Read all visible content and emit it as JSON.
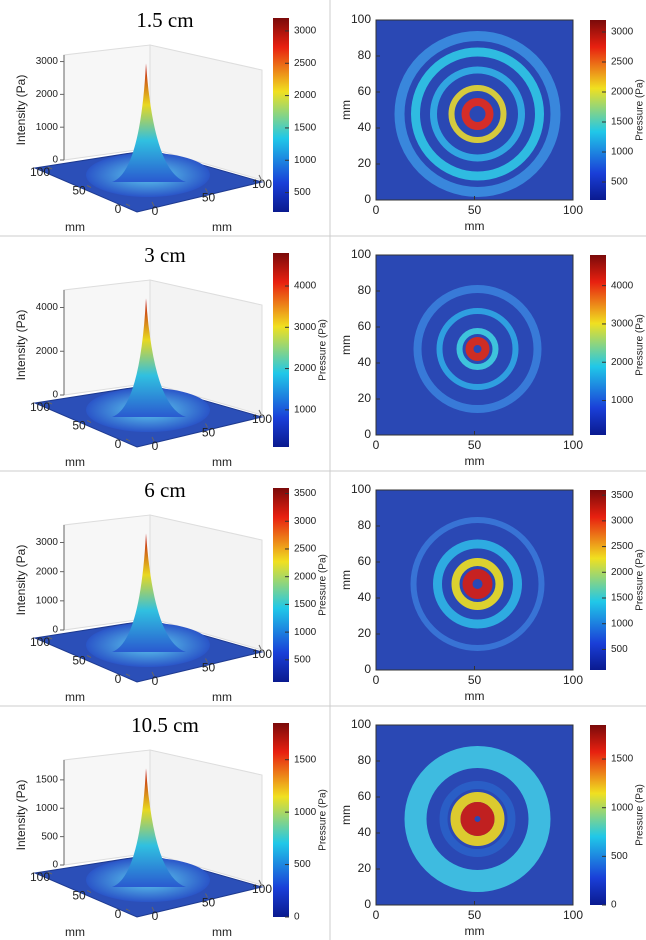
{
  "chart_data": [
    {
      "type": "surface3d",
      "title": "1.5 cm",
      "zlabel": "Intensity (Pa)",
      "zlim": [
        0,
        3200
      ],
      "zticks": [
        0,
        1000,
        2000,
        3000
      ],
      "xlabel": "mm",
      "ylabel": "mm",
      "xlim": [
        0,
        100
      ],
      "xticks": [
        0,
        50,
        100
      ],
      "ylim": [
        0,
        100
      ],
      "yticks": [
        0,
        50,
        100
      ],
      "colorbar": {
        "lim": [
          200,
          3200
        ],
        "ticks": [
          500,
          1000,
          1500,
          2000,
          2500,
          3000
        ]
      }
    },
    {
      "type": "heatmap",
      "xlabel": "mm",
      "ylabel": "mm",
      "xlim": [
        0,
        100
      ],
      "xticks": [
        0,
        50,
        100
      ],
      "ylim": [
        0,
        100
      ],
      "yticks": [
        0,
        20,
        40,
        60,
        80,
        100
      ],
      "colorbar": {
        "label": "Pressure (Pa)",
        "lim": [
          200,
          3200
        ],
        "ticks": [
          500,
          1000,
          1500,
          2000,
          2500,
          3000
        ]
      }
    },
    {
      "type": "surface3d",
      "title": "3 cm",
      "zlabel": "Intensity (Pa)",
      "zlim": [
        0,
        4800
      ],
      "zticks": [
        0,
        2000,
        4000
      ],
      "xlabel": "mm",
      "ylabel": "mm",
      "xlim": [
        0,
        100
      ],
      "xticks": [
        0,
        50,
        100
      ],
      "ylim": [
        0,
        100
      ],
      "yticks": [
        0,
        50,
        100
      ],
      "colorbar": {
        "label": "Pressure (Pa)",
        "lim": [
          100,
          4800
        ],
        "ticks": [
          1000,
          2000,
          3000,
          4000
        ]
      }
    },
    {
      "type": "heatmap",
      "xlabel": "mm",
      "ylabel": "mm",
      "xlim": [
        0,
        100
      ],
      "xticks": [
        0,
        50,
        100
      ],
      "ylim": [
        0,
        100
      ],
      "yticks": [
        0,
        20,
        40,
        60,
        80,
        100
      ],
      "colorbar": {
        "label": "Pressure (Pa)",
        "lim": [
          100,
          4800
        ],
        "ticks": [
          1000,
          2000,
          3000,
          4000
        ]
      }
    },
    {
      "type": "surface3d",
      "title": "6 cm",
      "zlabel": "Intensity (Pa)",
      "zlim": [
        0,
        3600
      ],
      "zticks": [
        0,
        1000,
        2000,
        3000
      ],
      "xlabel": "mm",
      "ylabel": "mm",
      "xlim": [
        0,
        100
      ],
      "xticks": [
        0,
        50,
        100
      ],
      "ylim": [
        0,
        100
      ],
      "yticks": [
        0,
        50,
        100
      ],
      "colorbar": {
        "label": "Pressure (Pa)",
        "lim": [
          100,
          3600
        ],
        "ticks": [
          500,
          1000,
          1500,
          2000,
          2500,
          3000,
          3500
        ]
      }
    },
    {
      "type": "heatmap",
      "xlabel": "mm",
      "ylabel": "mm",
      "xlim": [
        0,
        100
      ],
      "xticks": [
        0,
        50,
        100
      ],
      "ylim": [
        0,
        100
      ],
      "yticks": [
        0,
        20,
        40,
        60,
        80,
        100
      ],
      "colorbar": {
        "label": "Pressure (Pa)",
        "lim": [
          100,
          3600
        ],
        "ticks": [
          500,
          1000,
          1500,
          2000,
          2500,
          3000,
          3500
        ]
      }
    },
    {
      "type": "surface3d",
      "title": "10.5 cm",
      "zlabel": "Intensity (Pa)",
      "zlim": [
        0,
        1850
      ],
      "zticks": [
        0,
        500,
        1000,
        1500
      ],
      "xlabel": "mm",
      "ylabel": "mm",
      "xlim": [
        0,
        100
      ],
      "xticks": [
        0,
        50,
        100
      ],
      "ylim": [
        0,
        100
      ],
      "yticks": [
        0,
        50,
        100
      ],
      "colorbar": {
        "label": "Pressure (Pa)",
        "lim": [
          0,
          1850
        ],
        "ticks": [
          0,
          500,
          1000,
          1500
        ]
      }
    },
    {
      "type": "heatmap",
      "xlabel": "mm",
      "ylabel": "mm",
      "xlim": [
        0,
        100
      ],
      "xticks": [
        0,
        50,
        100
      ],
      "ylim": [
        0,
        100
      ],
      "yticks": [
        0,
        20,
        40,
        60,
        80,
        100
      ],
      "colorbar": {
        "label": "Pressure (Pa)",
        "lim": [
          0,
          1850
        ],
        "ticks": [
          0,
          500,
          1000,
          1500
        ]
      }
    }
  ]
}
